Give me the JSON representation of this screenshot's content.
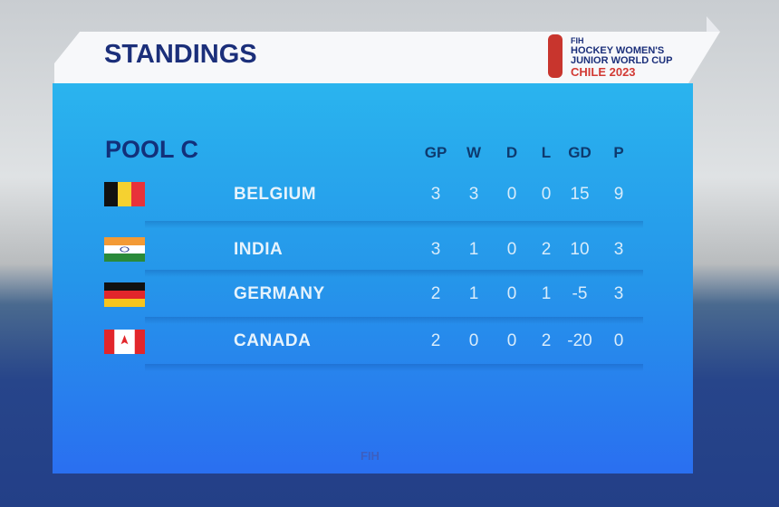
{
  "header": {
    "title": "STANDINGS",
    "logo": {
      "org": "FIH",
      "line1": "HOCKEY WOMEN'S",
      "line2": "JUNIOR WORLD CUP",
      "line3": "CHILE 2023"
    }
  },
  "table": {
    "title": "POOL C",
    "columns": [
      "GP",
      "W",
      "D",
      "L",
      "GD",
      "P"
    ],
    "rows": [
      {
        "team": "BELGIUM",
        "stats": [
          3,
          3,
          0,
          0,
          15,
          9
        ]
      },
      {
        "team": "INDIA",
        "stats": [
          3,
          1,
          0,
          2,
          10,
          3
        ]
      },
      {
        "team": "GERMANY",
        "stats": [
          2,
          1,
          0,
          1,
          -5,
          3
        ]
      },
      {
        "team": "CANADA",
        "stats": [
          2,
          0,
          0,
          2,
          -20,
          0
        ]
      }
    ]
  },
  "footer": "FIH"
}
